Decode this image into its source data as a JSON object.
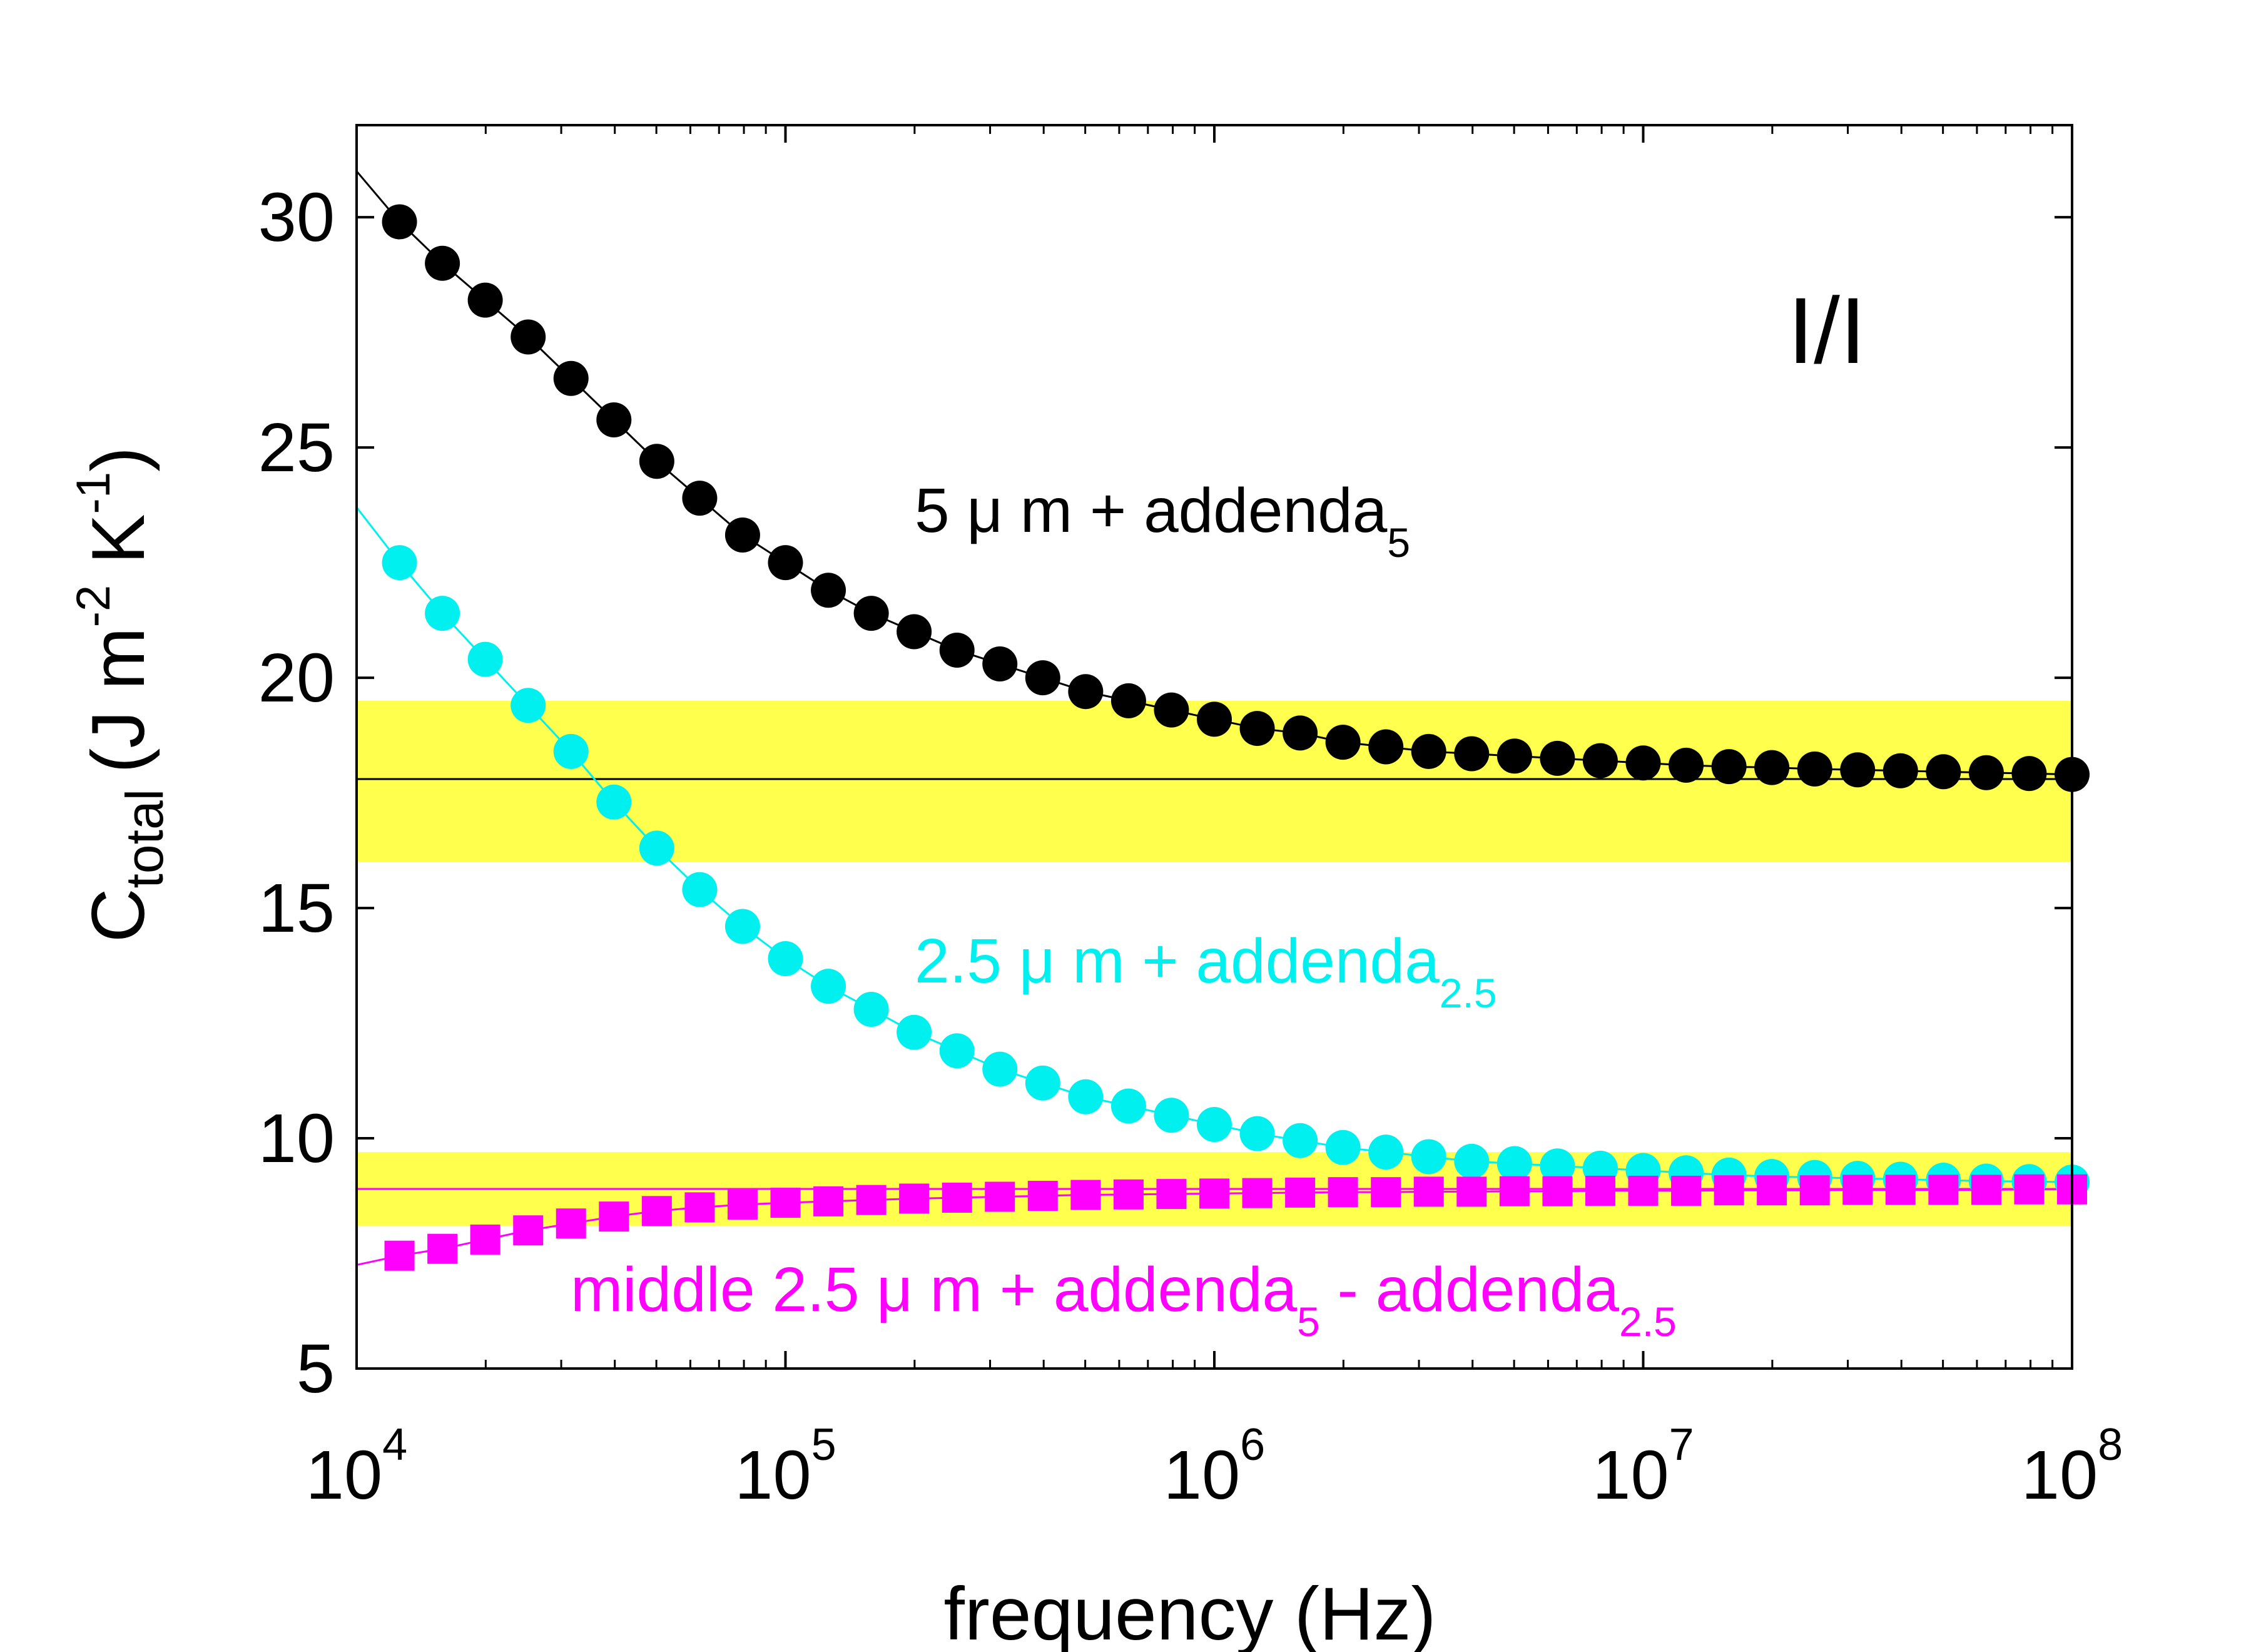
{
  "chart_data": {
    "type": "scatter",
    "title": "",
    "xlabel": "frequency (Hz)",
    "xscale": "log",
    "xlim": [
      10000,
      100000000
    ],
    "x_ticks": [
      {
        "value": 10000,
        "base": "10",
        "exp": "4"
      },
      {
        "value": 100000,
        "base": "10",
        "exp": "5"
      },
      {
        "value": 1000000,
        "base": "10",
        "exp": "6"
      },
      {
        "value": 10000000,
        "base": "10",
        "exp": "7"
      },
      {
        "value": 100000000,
        "base": "10",
        "exp": "8"
      }
    ],
    "ylabel": {
      "main": "C",
      "sub": "total",
      "units_1": "(J m",
      "sup_1": "-2",
      "units_2": " K",
      "sup_2": "-1",
      "units_3": ")"
    },
    "ylim": [
      5,
      32
    ],
    "y_ticks": [
      "5",
      "10",
      "15",
      "20",
      "25",
      "30"
    ],
    "grid": false,
    "panel_label": "I/I",
    "bands": [
      {
        "y_min": 16.0,
        "y_max": 19.5,
        "color": "#ffff4d",
        "center": 17.8
      },
      {
        "y_min": 8.1,
        "y_max": 9.7,
        "color": "#ffff4d",
        "center": 8.9
      }
    ],
    "x_points": [
      12590,
      15850,
      19950,
      25120,
      31620,
      39810,
      50120,
      63100,
      79430,
      100000,
      125900,
      158500,
      199500,
      251200,
      316200,
      398100,
      501200,
      631000,
      794300,
      1000000,
      1259000,
      1585000,
      1995000,
      2512000,
      3162000,
      3981000,
      5012000,
      6310000,
      7943000,
      10000000,
      12590000,
      15850000,
      19950000,
      25120000,
      31620000,
      39810000,
      50120000,
      63100000,
      79430000,
      100000000
    ],
    "series": [
      {
        "name": "5 μm + addenda5",
        "label": {
          "main": "5 μ m + addenda",
          "sub": "5",
          "sub2": "",
          "tail": ""
        },
        "color": "#000000",
        "marker": "circle",
        "fit": {
          "start": [
            10000,
            31.0
          ],
          "end": [
            100000000,
            17.8
          ]
        },
        "values": [
          29.9,
          29.0,
          28.2,
          27.4,
          26.5,
          25.6,
          24.7,
          23.9,
          23.1,
          22.5,
          21.9,
          21.4,
          21.0,
          20.6,
          20.3,
          20.0,
          19.7,
          19.5,
          19.3,
          19.1,
          18.9,
          18.8,
          18.6,
          18.5,
          18.4,
          18.35,
          18.3,
          18.25,
          18.2,
          18.15,
          18.1,
          18.07,
          18.05,
          18.02,
          18.0,
          17.98,
          17.96,
          17.94,
          17.92,
          17.9
        ]
      },
      {
        "name": "2.5 μm + addenda2.5",
        "label": {
          "main": "2.5 μ m + addenda",
          "sub": "2.5",
          "sub2": "",
          "tail": ""
        },
        "color": "#00f0f0",
        "marker": "circle",
        "fit": {
          "start": [
            10000,
            23.7
          ],
          "end": [
            100000000,
            9.05
          ]
        },
        "values": [
          22.5,
          21.4,
          20.4,
          19.4,
          18.4,
          17.3,
          16.3,
          15.4,
          14.6,
          13.9,
          13.3,
          12.8,
          12.3,
          11.9,
          11.5,
          11.2,
          10.9,
          10.7,
          10.5,
          10.3,
          10.1,
          9.95,
          9.8,
          9.7,
          9.6,
          9.5,
          9.45,
          9.4,
          9.35,
          9.3,
          9.25,
          9.2,
          9.17,
          9.15,
          9.13,
          9.11,
          9.09,
          9.07,
          9.06,
          9.05
        ]
      },
      {
        "name": "middle 2.5 μm + addenda5 - addenda2.5",
        "label": {
          "main": "middle 2.5 μ m + addenda",
          "sub": "5",
          "mid": " - addenda",
          "sub2": "2.5"
        },
        "color": "#ff00ff",
        "marker": "square",
        "fit": {
          "start": [
            10000,
            7.25
          ],
          "end": [
            100000000,
            8.9
          ]
        },
        "values": [
          7.45,
          7.6,
          7.8,
          8.0,
          8.15,
          8.3,
          8.42,
          8.5,
          8.56,
          8.6,
          8.63,
          8.66,
          8.69,
          8.71,
          8.73,
          8.75,
          8.77,
          8.78,
          8.79,
          8.8,
          8.81,
          8.82,
          8.83,
          8.83,
          8.84,
          8.84,
          8.85,
          8.85,
          8.86,
          8.86,
          8.86,
          8.87,
          8.87,
          8.87,
          8.88,
          8.88,
          8.88,
          8.88,
          8.89,
          8.89
        ]
      }
    ]
  }
}
